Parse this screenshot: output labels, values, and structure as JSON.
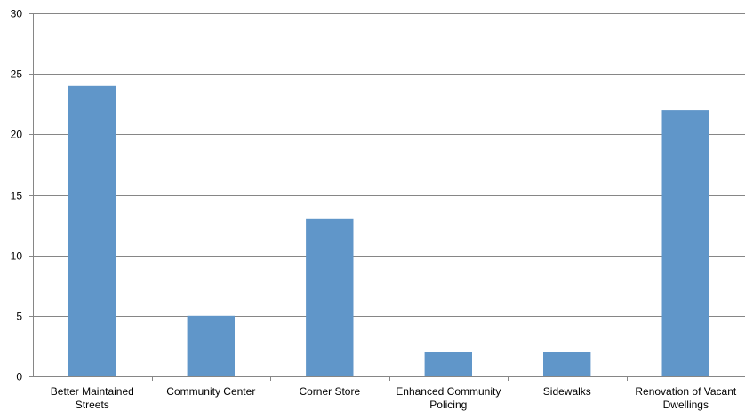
{
  "chart_data": {
    "type": "bar",
    "title": "",
    "xlabel": "",
    "ylabel": "",
    "categories": [
      [
        "Better Maintained",
        "Streets"
      ],
      [
        "Community Center"
      ],
      [
        "Corner Store"
      ],
      [
        "Enhanced Community",
        "Policing"
      ],
      [
        "Sidewalks"
      ],
      [
        "Renovation of Vacant",
        "Dwellings"
      ]
    ],
    "values": [
      24,
      5,
      13,
      2,
      2,
      22
    ],
    "ylim": [
      0,
      30
    ],
    "yticks": [
      0,
      5,
      10,
      15,
      20,
      25,
      30
    ],
    "grid": true,
    "legend": "none",
    "bar_color": "#6096C9",
    "grid_color": "#868686"
  }
}
